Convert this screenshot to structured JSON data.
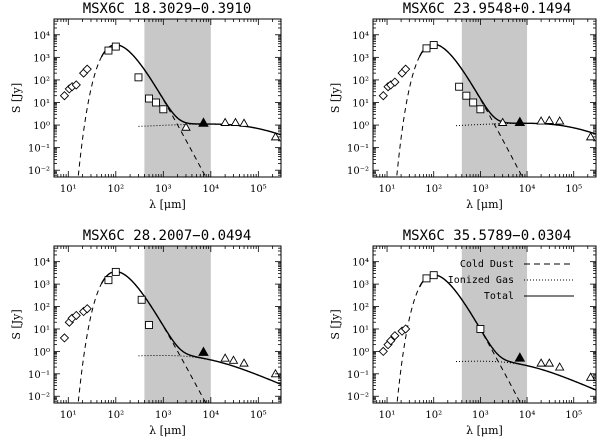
{
  "chart_data": [
    {
      "type": "scatter",
      "title": "MSX6C 18.3029−0.3910",
      "xlabel": "λ [μm]",
      "ylabel": "S [Jy]",
      "xscale": "log",
      "yscale": "log",
      "xlim": [
        5,
        300000
      ],
      "ylim": [
        0.005,
        50000
      ],
      "xticks": [
        10,
        100,
        1000,
        10000,
        100000
      ],
      "xtick_labels": [
        "10¹",
        "10²",
        "10³",
        "10⁴",
        "10⁵"
      ],
      "yticks": [
        0.01,
        0.1,
        1,
        10,
        100,
        1000,
        10000
      ],
      "ytick_labels": [
        "10⁻²",
        "10⁻¹",
        "10⁰",
        "10¹",
        "10²",
        "10³",
        "10⁴"
      ],
      "shaded_band": [
        400,
        10000
      ],
      "series": [
        {
          "marker": "diamond",
          "x": [
            8.3,
            10.5,
            12,
            14.7,
            21,
            25
          ],
          "y": [
            20,
            40,
            50,
            60,
            200,
            300
          ]
        },
        {
          "marker": "square",
          "x": [
            70,
            100,
            300,
            500,
            700,
            1000
          ],
          "y": [
            2000,
            3000,
            130,
            15,
            10,
            5
          ]
        },
        {
          "marker": "filled-triangle",
          "x": [
            7000
          ],
          "y": [
            1.2
          ]
        },
        {
          "marker": "triangle",
          "x": [
            3000,
            20000,
            33000,
            50000,
            230000
          ],
          "y": [
            0.8,
            1.3,
            1.3,
            1.2,
            0.3
          ]
        }
      ],
      "cold_dust": {
        "amplitude": 3600,
        "peak": 100
      },
      "ionized_gas": {
        "amplitude": 1.2,
        "slope": 0.1,
        "turnover": 80000
      }
    },
    {
      "type": "scatter",
      "title": "MSX6C 23.9548+0.1494",
      "xlabel": "λ [μm]",
      "ylabel": "S [Jy]",
      "xscale": "log",
      "yscale": "log",
      "xlim": [
        5,
        300000
      ],
      "ylim": [
        0.005,
        50000
      ],
      "xticks": [
        10,
        100,
        1000,
        10000,
        100000
      ],
      "xtick_labels": [
        "10¹",
        "10²",
        "10³",
        "10⁴",
        "10⁵"
      ],
      "yticks": [
        0.01,
        0.1,
        1,
        10,
        100,
        1000,
        10000
      ],
      "ytick_labels": [
        "10⁻²",
        "10⁻¹",
        "10⁰",
        "10¹",
        "10²",
        "10³",
        "10⁴"
      ],
      "shaded_band": [
        400,
        10000
      ],
      "series": [
        {
          "marker": "diamond",
          "x": [
            8.3,
            10.5,
            12,
            14.7,
            21,
            25
          ],
          "y": [
            20,
            50,
            60,
            80,
            200,
            300
          ]
        },
        {
          "marker": "square",
          "x": [
            70,
            100,
            350,
            500,
            700,
            1000
          ],
          "y": [
            2500,
            3500,
            50,
            20,
            10,
            5
          ]
        },
        {
          "marker": "filled-triangle",
          "x": [
            7000
          ],
          "y": [
            1.3
          ]
        },
        {
          "marker": "triangle",
          "x": [
            3000,
            20000,
            30000,
            50000,
            230000
          ],
          "y": [
            1.3,
            1.5,
            1.6,
            1.5,
            0.3
          ]
        }
      ],
      "cold_dust": {
        "amplitude": 3800,
        "peak": 100
      },
      "ionized_gas": {
        "amplitude": 1.3,
        "slope": 0.1,
        "turnover": 80000
      }
    },
    {
      "type": "scatter",
      "title": "MSX6C 28.2007−0.0494",
      "xlabel": "λ [μm]",
      "ylabel": "S [Jy]",
      "xscale": "log",
      "yscale": "log",
      "xlim": [
        5,
        300000
      ],
      "ylim": [
        0.005,
        50000
      ],
      "xticks": [
        10,
        100,
        1000,
        10000,
        100000
      ],
      "xtick_labels": [
        "10¹",
        "10²",
        "10³",
        "10⁴",
        "10⁵"
      ],
      "yticks": [
        0.01,
        0.1,
        1,
        10,
        100,
        1000,
        10000
      ],
      "ytick_labels": [
        "10⁻²",
        "10⁻¹",
        "10⁰",
        "10¹",
        "10²",
        "10³",
        "10⁴"
      ],
      "shaded_band": [
        400,
        10000
      ],
      "series": [
        {
          "marker": "diamond",
          "x": [
            8.3,
            10.5,
            12,
            14.7,
            21,
            25
          ],
          "y": [
            4,
            20,
            30,
            40,
            60,
            80
          ]
        },
        {
          "marker": "square",
          "x": [
            70,
            100,
            350,
            500
          ],
          "y": [
            1500,
            3500,
            200,
            15
          ]
        },
        {
          "marker": "filled-triangle",
          "x": [
            7000
          ],
          "y": [
            0.9
          ]
        },
        {
          "marker": "triangle",
          "x": [
            20000,
            30000,
            50000,
            230000
          ],
          "y": [
            0.5,
            0.4,
            0.3,
            0.1
          ]
        }
      ],
      "cold_dust": {
        "amplitude": 3600,
        "peak": 100
      },
      "ionized_gas": {
        "amplitude": 0.9,
        "slope": 0.1,
        "turnover": 8000
      }
    },
    {
      "type": "scatter",
      "title": "MSX6C 35.5789−0.0304",
      "xlabel": "λ [μm]",
      "ylabel": "S [Jy]",
      "xscale": "log",
      "yscale": "log",
      "xlim": [
        5,
        300000
      ],
      "ylim": [
        0.005,
        50000
      ],
      "xticks": [
        10,
        100,
        1000,
        10000,
        100000
      ],
      "xtick_labels": [
        "10¹",
        "10²",
        "10³",
        "10⁴",
        "10⁵"
      ],
      "yticks": [
        0.01,
        0.1,
        1,
        10,
        100,
        1000,
        10000
      ],
      "ytick_labels": [
        "10⁻²",
        "10⁻¹",
        "10⁰",
        "10¹",
        "10²",
        "10³",
        "10⁴"
      ],
      "shaded_band": [
        400,
        10000
      ],
      "series": [
        {
          "marker": "diamond",
          "x": [
            8.3,
            10.5,
            12,
            14.7,
            21,
            25
          ],
          "y": [
            1,
            2,
            3,
            5,
            8,
            10
          ]
        },
        {
          "marker": "square",
          "x": [
            70,
            100,
            1000
          ],
          "y": [
            1800,
            2500,
            10
          ]
        },
        {
          "marker": "filled-triangle",
          "x": [
            7000
          ],
          "y": [
            0.5
          ]
        },
        {
          "marker": "triangle",
          "x": [
            20000,
            30000,
            50000,
            230000
          ],
          "y": [
            0.3,
            0.3,
            0.2,
            0.07
          ]
        }
      ],
      "cold_dust": {
        "amplitude": 2600,
        "peak": 100
      },
      "ionized_gas": {
        "amplitude": 0.5,
        "slope": 0.1,
        "turnover": 8000
      },
      "legend": {
        "position": "top-right",
        "entries": [
          {
            "label": "Cold Dust",
            "style": "dashed"
          },
          {
            "label": "Ionized Gas",
            "style": "dotted"
          },
          {
            "label": "Total",
            "style": "solid"
          }
        ]
      }
    }
  ],
  "colors": {
    "shade": "#c8c8c8",
    "line": "#000000",
    "background": "#ffffff"
  }
}
